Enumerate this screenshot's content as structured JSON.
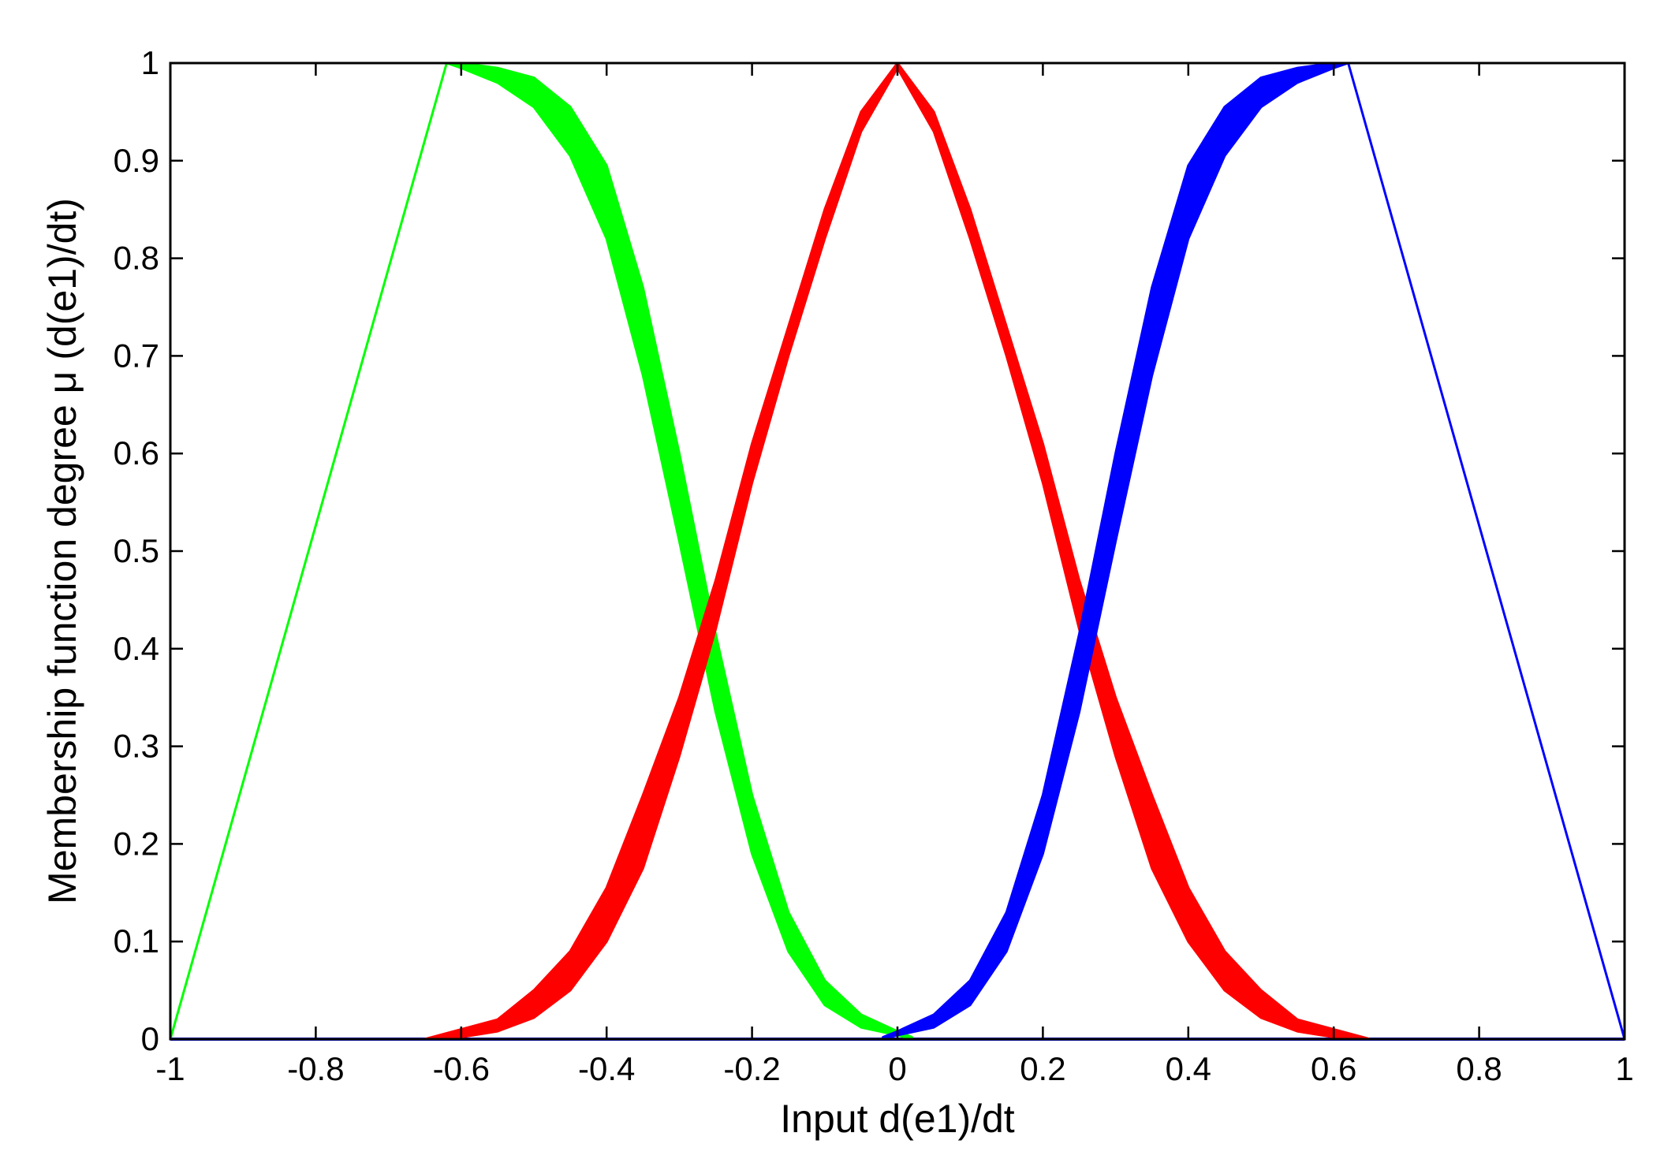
{
  "chart_data": {
    "type": "area",
    "title": "",
    "xlabel": "Input d(e1)/dt",
    "ylabel": "Membership function degree μ (d(e1)/dt)",
    "xlim": [
      -1,
      1
    ],
    "ylim": [
      0,
      1
    ],
    "xticks": [
      "-1",
      "-0.8",
      "-0.6",
      "-0.4",
      "-0.2",
      "0",
      "0.2",
      "0.4",
      "0.6",
      "0.8",
      "1"
    ],
    "yticks": [
      "0",
      "0.1",
      "0.2",
      "0.3",
      "0.4",
      "0.5",
      "0.6",
      "0.7",
      "0.8",
      "0.9",
      "1"
    ],
    "grid": false,
    "legend": "none",
    "series": [
      {
        "color": "#00ff00",
        "x": [
          -1.0,
          -0.62,
          -0.6,
          -0.55,
          -0.5,
          -0.45,
          -0.4,
          -0.35,
          -0.3,
          -0.25,
          -0.2,
          -0.15,
          -0.1,
          -0.05,
          0.0,
          0.02
        ],
        "lower": [
          0.0,
          1.0,
          0.995,
          0.98,
          0.955,
          0.905,
          0.82,
          0.68,
          0.51,
          0.335,
          0.19,
          0.09,
          0.035,
          0.012,
          0.004,
          0.0
        ],
        "upper": [
          0.0,
          1.0,
          1.0,
          0.995,
          0.985,
          0.955,
          0.895,
          0.77,
          0.6,
          0.415,
          0.25,
          0.13,
          0.06,
          0.025,
          0.008,
          0.002
        ]
      },
      {
        "color": "#ff0000",
        "x": [
          -0.65,
          -0.6,
          -0.55,
          -0.5,
          -0.45,
          -0.4,
          -0.35,
          -0.3,
          -0.25,
          -0.2,
          -0.15,
          -0.1,
          -0.05,
          0.0,
          0.05,
          0.1,
          0.15,
          0.2,
          0.25,
          0.3,
          0.35,
          0.4,
          0.45,
          0.5,
          0.55,
          0.6,
          0.65
        ],
        "lower": [
          0.0,
          0.002,
          0.008,
          0.022,
          0.05,
          0.1,
          0.175,
          0.29,
          0.42,
          0.57,
          0.7,
          0.82,
          0.93,
          0.995,
          0.93,
          0.82,
          0.7,
          0.57,
          0.42,
          0.29,
          0.175,
          0.1,
          0.05,
          0.022,
          0.008,
          0.002,
          0.0
        ],
        "upper": [
          0.0,
          0.01,
          0.02,
          0.05,
          0.09,
          0.155,
          0.25,
          0.35,
          0.47,
          0.61,
          0.73,
          0.85,
          0.95,
          1.0,
          0.95,
          0.85,
          0.73,
          0.61,
          0.47,
          0.35,
          0.25,
          0.155,
          0.09,
          0.05,
          0.02,
          0.01,
          0.0
        ]
      },
      {
        "color": "#0000ff",
        "x": [
          -0.02,
          0.0,
          0.05,
          0.1,
          0.15,
          0.2,
          0.25,
          0.3,
          0.35,
          0.4,
          0.45,
          0.5,
          0.55,
          0.6,
          0.62,
          1.0
        ],
        "lower": [
          0.0,
          0.004,
          0.012,
          0.035,
          0.09,
          0.19,
          0.335,
          0.51,
          0.68,
          0.82,
          0.905,
          0.955,
          0.98,
          0.995,
          1.0,
          0.0
        ],
        "upper": [
          0.002,
          0.008,
          0.025,
          0.06,
          0.13,
          0.25,
          0.415,
          0.6,
          0.77,
          0.895,
          0.955,
          0.985,
          0.995,
          1.0,
          1.0,
          0.0
        ]
      }
    ]
  }
}
